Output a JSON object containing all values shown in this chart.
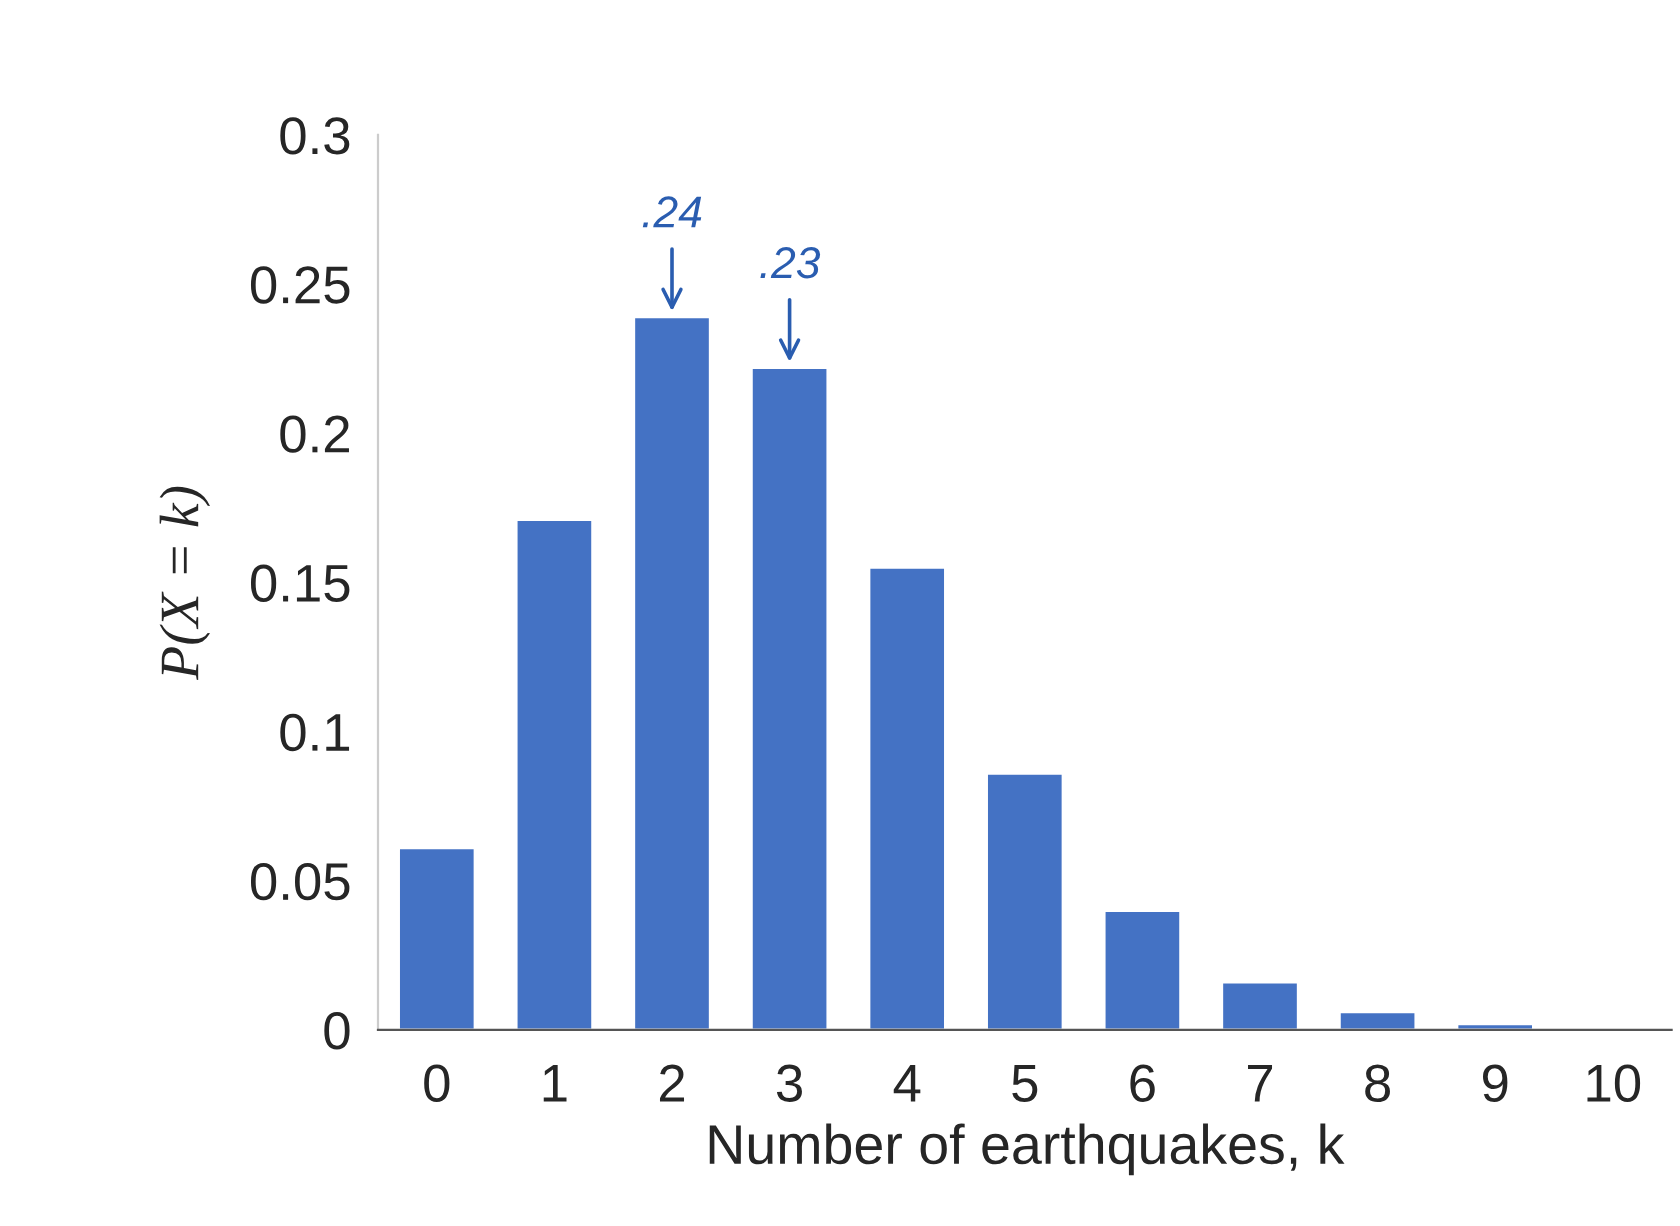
{
  "chart_data": {
    "type": "bar",
    "xlabel": "Number of earthquakes, k",
    "ylabel": "P(X = k)",
    "categories": [
      "0",
      "1",
      "2",
      "3",
      "4",
      "5",
      "6",
      "7",
      "8",
      "9",
      "10"
    ],
    "values": [
      0.061,
      0.171,
      0.239,
      0.222,
      0.155,
      0.086,
      0.04,
      0.016,
      0.006,
      0.002,
      null
    ],
    "color": "#4472c4",
    "ylim": [
      0,
      0.3
    ],
    "yticks": [
      {
        "value": 0,
        "label": "0"
      },
      0.05,
      0.1,
      0.15,
      0.2,
      0.25,
      0.3
    ],
    "grid": false,
    "legend": false,
    "annotations": [
      {
        "text": ".24",
        "x": "2",
        "y": 0.239
      },
      {
        "text": ".23",
        "x": "3",
        "y": 0.222
      }
    ]
  }
}
